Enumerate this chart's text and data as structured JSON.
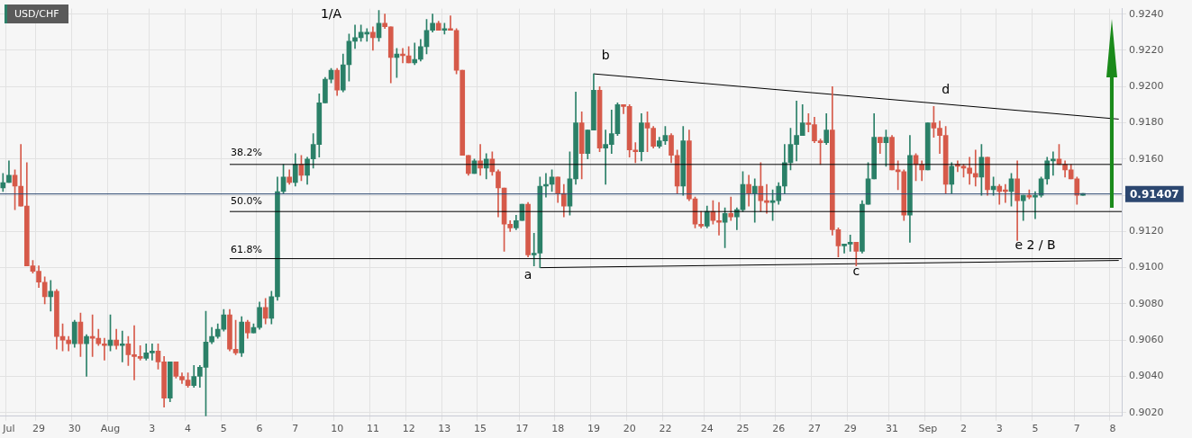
{
  "chart_data": {
    "type": "candlestick",
    "title": "USD/CHF",
    "categories": [
      null,
      "Jul",
      null,
      null,
      null,
      null,
      "29",
      null,
      null,
      null,
      null,
      null,
      "30",
      null,
      null,
      null,
      null,
      null,
      "Aug",
      null,
      null,
      null,
      null,
      null,
      null,
      "3",
      null,
      null,
      null,
      null,
      null,
      "4",
      null,
      null,
      null,
      null,
      null,
      "5",
      null,
      null,
      null,
      null,
      null,
      "6",
      null,
      null,
      null,
      null,
      null,
      "7",
      null,
      null,
      null,
      null,
      null,
      null,
      "10",
      null,
      null,
      null,
      null,
      null,
      "11",
      null,
      null,
      null,
      null,
      null,
      "12",
      null,
      null,
      null,
      null,
      null,
      "13",
      null,
      null,
      null,
      null,
      null,
      "15",
      null,
      null,
      null,
      null,
      null,
      null,
      "17",
      null,
      null,
      null,
      null,
      null,
      "18",
      null,
      null,
      null,
      null,
      null,
      "19",
      null,
      null,
      null,
      null,
      null,
      "20",
      null,
      null,
      null,
      null,
      null,
      "22",
      null,
      null,
      null,
      null,
      null,
      null,
      "24",
      null,
      null,
      null,
      null,
      null,
      "25",
      null,
      null,
      null,
      null,
      null,
      "26",
      null,
      null,
      null,
      null,
      null,
      "27",
      null,
      null,
      null,
      null,
      null,
      "29",
      null,
      null,
      null,
      null,
      null,
      null,
      "31",
      null,
      null,
      null,
      null,
      null,
      "Sep",
      null,
      null,
      null,
      null,
      null,
      "2",
      null,
      null,
      null,
      null,
      null,
      "3",
      null,
      null,
      null,
      null,
      null,
      "5",
      null,
      null,
      null,
      null,
      null,
      null,
      "7",
      null,
      null,
      null,
      null,
      null,
      "8",
      null
    ],
    "ohlc": [
      [
        0.9144,
        0.9152,
        0.9142,
        0.9147
      ],
      [
        0.9147,
        0.9159,
        0.9147,
        0.9151
      ],
      [
        0.9151,
        0.9154,
        0.9132,
        0.9145
      ],
      [
        0.9145,
        0.9168,
        0.9134,
        0.9134
      ],
      [
        0.9134,
        0.9158,
        0.9101,
        0.9101
      ],
      [
        0.9101,
        0.9104,
        0.9097,
        0.9098
      ],
      [
        0.9098,
        0.9101,
        0.9089,
        0.9092
      ],
      [
        0.9092,
        0.9095,
        0.908,
        0.9084
      ],
      [
        0.9084,
        0.9093,
        0.9076,
        0.9087
      ],
      [
        0.9087,
        0.9088,
        0.9055,
        0.9062
      ],
      [
        0.9062,
        0.9069,
        0.9054,
        0.906
      ],
      [
        0.906,
        0.9062,
        0.9054,
        0.9058
      ],
      [
        0.9058,
        0.9071,
        0.9056,
        0.907
      ],
      [
        0.907,
        0.9075,
        0.9051,
        0.9058
      ],
      [
        0.9058,
        0.9063,
        0.904,
        0.9062
      ],
      [
        0.9062,
        0.9074,
        0.9051,
        0.9061
      ],
      [
        0.9061,
        0.9066,
        0.9057,
        0.9058
      ],
      [
        0.9058,
        0.9061,
        0.9049,
        0.9057
      ],
      [
        0.9057,
        0.9074,
        0.9054,
        0.906
      ],
      [
        0.906,
        0.9066,
        0.9055,
        0.9057
      ],
      [
        0.9057,
        0.9065,
        0.9048,
        0.9058
      ],
      [
        0.9058,
        0.9062,
        0.9046,
        0.9052
      ],
      [
        0.9052,
        0.9068,
        0.9038,
        0.9051
      ],
      [
        0.9051,
        0.9057,
        0.9049,
        0.905
      ],
      [
        0.905,
        0.9058,
        0.9049,
        0.9053
      ],
      [
        0.9053,
        0.9058,
        0.9049,
        0.9054
      ],
      [
        0.9054,
        0.9058,
        0.9044,
        0.9048
      ],
      [
        0.9048,
        0.9051,
        0.9023,
        0.9028
      ],
      [
        0.9028,
        0.9048,
        0.9026,
        0.9048
      ],
      [
        0.9048,
        0.9048,
        0.9039,
        0.904
      ],
      [
        0.904,
        0.9042,
        0.9036,
        0.9038
      ],
      [
        0.9038,
        0.9042,
        0.9034,
        0.9035
      ],
      [
        0.9035,
        0.9046,
        0.9034,
        0.904
      ],
      [
        0.904,
        0.9046,
        0.9034,
        0.9045
      ],
      [
        0.9045,
        0.9076,
        0.9018,
        0.9059
      ],
      [
        0.9059,
        0.9067,
        0.9058,
        0.9062
      ],
      [
        0.9062,
        0.9069,
        0.9061,
        0.9066
      ],
      [
        0.9066,
        0.9077,
        0.9065,
        0.9074
      ],
      [
        0.9074,
        0.9077,
        0.9054,
        0.9055
      ],
      [
        0.9055,
        0.9071,
        0.9052,
        0.9053
      ],
      [
        0.9053,
        0.9073,
        0.9051,
        0.907
      ],
      [
        0.907,
        0.9071,
        0.9061,
        0.9064
      ],
      [
        0.9064,
        0.9069,
        0.9064,
        0.9067
      ],
      [
        0.9067,
        0.9081,
        0.9066,
        0.9078
      ],
      [
        0.9078,
        0.9083,
        0.9069,
        0.9072
      ],
      [
        0.9072,
        0.9087,
        0.9069,
        0.9084
      ],
      [
        0.9084,
        0.915,
        0.9082,
        0.9142
      ],
      [
        0.9142,
        0.9157,
        0.9141,
        0.915
      ],
      [
        0.915,
        0.9154,
        0.9146,
        0.9147
      ],
      [
        0.9147,
        0.9163,
        0.9145,
        0.9157
      ],
      [
        0.9157,
        0.9162,
        0.9148,
        0.9151
      ],
      [
        0.9151,
        0.9161,
        0.9146,
        0.916
      ],
      [
        0.916,
        0.9174,
        0.9155,
        0.9168
      ],
      [
        0.9168,
        0.9196,
        0.9161,
        0.9191
      ],
      [
        0.9191,
        0.9205,
        0.9191,
        0.9204
      ],
      [
        0.9204,
        0.921,
        0.9202,
        0.9209
      ],
      [
        0.9209,
        0.921,
        0.9195,
        0.9198
      ],
      [
        0.9198,
        0.9218,
        0.9197,
        0.9212
      ],
      [
        0.9212,
        0.9229,
        0.9203,
        0.9225
      ],
      [
        0.9225,
        0.9234,
        0.9221,
        0.9227
      ],
      [
        0.9227,
        0.9234,
        0.9225,
        0.923
      ],
      [
        0.9229,
        0.9232,
        0.9225,
        0.923
      ],
      [
        0.923,
        0.9233,
        0.922,
        0.9227
      ],
      [
        0.9227,
        0.9242,
        0.9225,
        0.9235
      ],
      [
        0.9235,
        0.924,
        0.9232,
        0.9233
      ],
      [
        0.9233,
        0.9233,
        0.9202,
        0.9216
      ],
      [
        0.9216,
        0.9221,
        0.9205,
        0.9218
      ],
      [
        0.9218,
        0.9221,
        0.9213,
        0.9217
      ],
      [
        0.9217,
        0.9222,
        0.9213,
        0.9213
      ],
      [
        0.9213,
        0.9224,
        0.9212,
        0.9215
      ],
      [
        0.9215,
        0.9226,
        0.9214,
        0.9222
      ],
      [
        0.9222,
        0.9237,
        0.9218,
        0.9231
      ],
      [
        0.9231,
        0.924,
        0.923,
        0.9235
      ],
      [
        0.9235,
        0.9236,
        0.9231,
        0.9231
      ],
      [
        0.9231,
        0.9235,
        0.9229,
        0.9232
      ],
      [
        0.9232,
        0.9239,
        0.9231,
        0.9231
      ],
      [
        0.9231,
        0.9232,
        0.9207,
        0.9209
      ],
      [
        0.9209,
        0.9209,
        0.9162,
        0.9162
      ],
      [
        0.9162,
        0.9162,
        0.9151,
        0.9152
      ],
      [
        0.9152,
        0.916,
        0.9152,
        0.9159
      ],
      [
        0.9159,
        0.9168,
        0.9151,
        0.9155
      ],
      [
        0.9155,
        0.9163,
        0.9149,
        0.916
      ],
      [
        0.916,
        0.9164,
        0.9151,
        0.9153
      ],
      [
        0.9153,
        0.9154,
        0.9128,
        0.9144
      ],
      [
        0.9144,
        0.9144,
        0.9109,
        0.9124
      ],
      [
        0.9124,
        0.9126,
        0.912,
        0.9122
      ],
      [
        0.9122,
        0.9129,
        0.9121,
        0.9126
      ],
      [
        0.9126,
        0.9135,
        0.9126,
        0.9135
      ],
      [
        0.9135,
        0.9136,
        0.9106,
        0.9107
      ],
      [
        0.9107,
        0.9119,
        0.9101,
        0.9108
      ],
      [
        0.9108,
        0.915,
        0.91,
        0.9145
      ],
      [
        0.9145,
        0.9152,
        0.9139,
        0.9146
      ],
      [
        0.9146,
        0.9154,
        0.9142,
        0.915
      ],
      [
        0.915,
        0.915,
        0.9136,
        0.9141
      ],
      [
        0.9141,
        0.9146,
        0.9128,
        0.9134
      ],
      [
        0.9134,
        0.9164,
        0.9129,
        0.9149
      ],
      [
        0.9149,
        0.9197,
        0.9146,
        0.918
      ],
      [
        0.918,
        0.9186,
        0.9149,
        0.9163
      ],
      [
        0.9163,
        0.9176,
        0.916,
        0.9176
      ],
      [
        0.9176,
        0.9207,
        0.9176,
        0.9198
      ],
      [
        0.9198,
        0.92,
        0.9164,
        0.9166
      ],
      [
        0.9166,
        0.9176,
        0.9146,
        0.9168
      ],
      [
        0.9168,
        0.9187,
        0.9163,
        0.9174
      ],
      [
        0.9174,
        0.9191,
        0.9173,
        0.919
      ],
      [
        0.919,
        0.919,
        0.9185,
        0.9189
      ],
      [
        0.9189,
        0.919,
        0.9161,
        0.9165
      ],
      [
        0.9165,
        0.9169,
        0.9158,
        0.9164
      ],
      [
        0.9164,
        0.9185,
        0.9159,
        0.918
      ],
      [
        0.918,
        0.9186,
        0.9164,
        0.9177
      ],
      [
        0.9177,
        0.9178,
        0.9166,
        0.9167
      ],
      [
        0.9167,
        0.9172,
        0.9166,
        0.917
      ],
      [
        0.917,
        0.9178,
        0.9168,
        0.9173
      ],
      [
        0.9173,
        0.9174,
        0.9158,
        0.9162
      ],
      [
        0.9162,
        0.9165,
        0.9141,
        0.9145
      ],
      [
        0.9145,
        0.9178,
        0.914,
        0.917
      ],
      [
        0.917,
        0.9176,
        0.9137,
        0.9138
      ],
      [
        0.9138,
        0.9139,
        0.9122,
        0.9124
      ],
      [
        0.9124,
        0.9131,
        0.9122,
        0.9123
      ],
      [
        0.9123,
        0.9134,
        0.9122,
        0.9131
      ],
      [
        0.9131,
        0.9137,
        0.9124,
        0.9126
      ],
      [
        0.9126,
        0.9136,
        0.9118,
        0.9125
      ],
      [
        0.9125,
        0.9133,
        0.9111,
        0.913
      ],
      [
        0.913,
        0.9139,
        0.9126,
        0.9128
      ],
      [
        0.9128,
        0.9133,
        0.9121,
        0.9132
      ],
      [
        0.9132,
        0.9153,
        0.9131,
        0.9146
      ],
      [
        0.9146,
        0.9151,
        0.9134,
        0.9141
      ],
      [
        0.9141,
        0.9149,
        0.9125,
        0.9145
      ],
      [
        0.9145,
        0.9158,
        0.9131,
        0.9137
      ],
      [
        0.9137,
        0.9146,
        0.913,
        0.9136
      ],
      [
        0.9136,
        0.9143,
        0.9126,
        0.9137
      ],
      [
        0.9137,
        0.9147,
        0.9135,
        0.9145
      ],
      [
        0.9145,
        0.9168,
        0.9141,
        0.9158
      ],
      [
        0.9158,
        0.9177,
        0.9154,
        0.9168
      ],
      [
        0.9168,
        0.9192,
        0.9159,
        0.9173
      ],
      [
        0.9173,
        0.919,
        0.9173,
        0.918
      ],
      [
        0.918,
        0.9185,
        0.9175,
        0.9179
      ],
      [
        0.9179,
        0.9183,
        0.9169,
        0.917
      ],
      [
        0.917,
        0.9171,
        0.9157,
        0.9169
      ],
      [
        0.9169,
        0.9185,
        0.9168,
        0.9176
      ],
      [
        0.9176,
        0.92,
        0.9118,
        0.9121
      ],
      [
        0.9121,
        0.9122,
        0.9106,
        0.9112
      ],
      [
        0.9112,
        0.9113,
        0.9108,
        0.9113
      ],
      [
        0.9113,
        0.9118,
        0.9109,
        0.9114
      ],
      [
        0.9114,
        0.9114,
        0.9101,
        0.9109
      ],
      [
        0.9109,
        0.9137,
        0.9108,
        0.9135
      ],
      [
        0.9135,
        0.9158,
        0.9135,
        0.9149
      ],
      [
        0.9149,
        0.9185,
        0.9149,
        0.9172
      ],
      [
        0.9172,
        0.9172,
        0.9163,
        0.9169
      ],
      [
        0.9169,
        0.9176,
        0.9156,
        0.9172
      ],
      [
        0.9172,
        0.9173,
        0.9154,
        0.9154
      ],
      [
        0.9154,
        0.9159,
        0.9143,
        0.9153
      ],
      [
        0.9153,
        0.9154,
        0.9126,
        0.9129
      ],
      [
        0.9129,
        0.9173,
        0.9114,
        0.9162
      ],
      [
        0.9162,
        0.9163,
        0.9148,
        0.9157
      ],
      [
        0.9157,
        0.9159,
        0.9148,
        0.9154
      ],
      [
        0.9154,
        0.918,
        0.9154,
        0.918
      ],
      [
        0.918,
        0.9189,
        0.9172,
        0.9177
      ],
      [
        0.9177,
        0.9181,
        0.9163,
        0.9173
      ],
      [
        0.9173,
        0.9178,
        0.9141,
        0.9146
      ],
      [
        0.9146,
        0.9158,
        0.9141,
        0.9156
      ],
      [
        0.9157,
        0.9159,
        0.9153,
        0.9156
      ],
      [
        0.9156,
        0.9157,
        0.915,
        0.9155
      ],
      [
        0.9155,
        0.9161,
        0.9146,
        0.9152
      ],
      [
        0.9152,
        0.9165,
        0.9145,
        0.915
      ],
      [
        0.915,
        0.9168,
        0.914,
        0.9161
      ],
      [
        0.9161,
        0.9161,
        0.914,
        0.9143
      ],
      [
        0.9143,
        0.915,
        0.914,
        0.9145
      ],
      [
        0.9145,
        0.9146,
        0.9135,
        0.9142
      ],
      [
        0.9143,
        0.9146,
        0.9136,
        0.9142
      ],
      [
        0.9142,
        0.9152,
        0.9134,
        0.9149
      ],
      [
        0.9149,
        0.9159,
        0.9115,
        0.9137
      ],
      [
        0.9137,
        0.914,
        0.9126,
        0.914
      ],
      [
        0.914,
        0.9143,
        0.9138,
        0.9139
      ],
      [
        0.9139,
        0.9142,
        0.9127,
        0.914
      ],
      [
        0.914,
        0.915,
        0.9139,
        0.9149
      ],
      [
        0.9149,
        0.9161,
        0.9146,
        0.9159
      ],
      [
        0.9159,
        0.9164,
        0.9151,
        0.916
      ],
      [
        0.916,
        0.9168,
        0.9157,
        0.9157
      ],
      [
        0.9157,
        0.9159,
        0.915,
        0.9154
      ],
      [
        0.9154,
        0.9157,
        0.9149,
        0.9149
      ],
      [
        0.9149,
        0.915,
        0.9135,
        0.914
      ],
      [
        0.914,
        0.9141,
        0.914,
        0.9141
      ],
      null,
      null,
      null,
      null,
      null,
      null
    ],
    "colors": [
      "#2b8068",
      "#2b8068",
      "#d65a4a",
      "#d65a4a",
      "#d65a4a",
      "#d65a4a",
      "#d65a4a",
      "#d65a4a",
      "#2b8068",
      "#d65a4a",
      "#d65a4a",
      "#d65a4a",
      "#2b8068",
      "#d65a4a",
      "#2b8068",
      "#d65a4a",
      "#d65a4a",
      "#d65a4a",
      "#2b8068",
      "#d65a4a",
      "#2b8068",
      "#d65a4a",
      "#d65a4a",
      "#d65a4a",
      "#2b8068",
      "#2b8068",
      "#d65a4a",
      "#d65a4a",
      "#2b8068",
      "#d65a4a",
      "#d65a4a",
      "#d65a4a",
      "#2b8068",
      "#2b8068",
      "#2b8068",
      "#2b8068",
      "#2b8068",
      "#2b8068",
      "#d65a4a",
      "#d65a4a",
      "#2b8068",
      "#d65a4a",
      "#2b8068",
      "#2b8068",
      "#d65a4a",
      "#2b8068",
      "#2b8068",
      "#2b8068",
      "#d65a4a",
      "#2b8068",
      "#d65a4a",
      "#2b8068",
      "#2b8068",
      "#2b8068",
      "#2b8068",
      "#2b8068",
      "#d65a4a",
      "#2b8068",
      "#2b8068",
      "#2b8068",
      "#2b8068",
      "#2b8068",
      "#d65a4a",
      "#2b8068",
      "#d65a4a",
      "#d65a4a",
      "#2b8068",
      "#d65a4a",
      "#d65a4a",
      "#2b8068",
      "#2b8068",
      "#2b8068",
      "#2b8068",
      "#d65a4a",
      "#2b8068",
      "#d65a4a",
      "#d65a4a",
      "#d65a4a",
      "#d65a4a",
      "#2b8068",
      "#d65a4a",
      "#2b8068",
      "#d65a4a",
      "#d65a4a",
      "#d65a4a",
      "#d65a4a",
      "#2b8068",
      "#2b8068",
      "#d65a4a",
      "#2b8068",
      "#2b8068",
      "#2b8068",
      "#2b8068",
      "#d65a4a",
      "#d65a4a",
      "#2b8068",
      "#2b8068",
      "#d65a4a",
      "#2b8068",
      "#2b8068",
      "#d65a4a",
      "#2b8068",
      "#2b8068",
      "#2b8068",
      "#d65a4a",
      "#d65a4a",
      "#d65a4a",
      "#2b8068",
      "#d65a4a",
      "#d65a4a",
      "#2b8068",
      "#2b8068",
      "#d65a4a",
      "#d65a4a",
      "#2b8068",
      "#d65a4a",
      "#d65a4a",
      "#d65a4a",
      "#2b8068",
      "#d65a4a",
      "#d65a4a",
      "#2b8068",
      "#d65a4a",
      "#2b8068",
      "#2b8068",
      "#d65a4a",
      "#2b8068",
      "#d65a4a",
      "#d65a4a",
      "#2b8068",
      "#2b8068",
      "#2b8068",
      "#2b8068",
      "#2b8068",
      "#2b8068",
      "#d65a4a",
      "#d65a4a",
      "#d65a4a",
      "#2b8068",
      "#d65a4a",
      "#d65a4a",
      "#2b8068",
      "#2b8068",
      "#d65a4a",
      "#2b8068",
      "#2b8068",
      "#2b8068",
      "#d65a4a",
      "#2b8068",
      "#d65a4a",
      "#d65a4a",
      "#d65a4a",
      "#2b8068",
      "#d65a4a",
      "#d65a4a",
      "#2b8068",
      "#d65a4a",
      "#d65a4a",
      "#d65a4a",
      "#2b8068",
      "#d65a4a",
      "#d65a4a",
      "#d65a4a",
      "#d65a4a",
      "#2b8068",
      "#d65a4a",
      "#2b8068",
      "#d65a4a",
      "#d65a4a",
      "#2b8068",
      "#d65a4a",
      "#2b8068",
      "#d65a4a",
      "#2b8068",
      "#2b8068",
      "#2b8068",
      "#2b8068",
      "#d65a4a",
      "#d65a4a",
      "#d65a4a",
      "#d65a4a",
      "#2b8068",
      null,
      null,
      null,
      null,
      null,
      null
    ],
    "series": [
      {
        "type": "line",
        "color": "#000000",
        "values": [
          null,
          null,
          null,
          null,
          null,
          null,
          null,
          null,
          null,
          null,
          null,
          null,
          null,
          null,
          null,
          null,
          null,
          null,
          null,
          null,
          null,
          null,
          null,
          null,
          null,
          null,
          null,
          null,
          null,
          null,
          null,
          null,
          null,
          null,
          null,
          null,
          null,
          null,
          null,
          null,
          null,
          null,
          null,
          null,
          null,
          null,
          null,
          null,
          null,
          null,
          null,
          null,
          null,
          null,
          null,
          null,
          null,
          null,
          null,
          null,
          null,
          null,
          null,
          null,
          null,
          null,
          null,
          null,
          null,
          null,
          null,
          null,
          null,
          null,
          null,
          null,
          null,
          null,
          null,
          null,
          null,
          null,
          null,
          null,
          null,
          null,
          null,
          null,
          null,
          null,
          null,
          null,
          null,
          null,
          null,
          null,
          null,
          null,
          null,
          0.9207,
          null,
          null,
          null,
          null,
          null,
          null,
          null,
          null,
          null,
          null,
          null,
          null,
          null,
          null,
          null,
          null,
          null,
          null,
          null,
          null,
          null,
          null,
          null,
          null,
          null,
          null,
          null,
          null,
          null,
          null,
          null,
          null,
          null,
          null,
          null,
          null,
          null,
          null,
          null,
          null,
          null,
          null,
          null,
          null,
          null,
          null,
          null,
          null,
          null,
          null,
          null,
          null,
          null,
          null,
          null,
          null,
          null,
          null,
          null,
          null,
          null,
          null,
          null,
          null,
          null,
          null,
          null,
          null,
          null,
          null,
          null,
          null,
          null,
          null,
          null,
          null,
          null,
          null,
          null,
          null,
          null,
          null,
          null,
          null,
          null,
          null,
          null,
          0.9182
        ]
      },
      {
        "type": "line",
        "color": "#000000",
        "values": [
          null,
          null,
          null,
          null,
          null,
          null,
          null,
          null,
          null,
          null,
          null,
          null,
          null,
          null,
          null,
          null,
          null,
          null,
          null,
          null,
          null,
          null,
          null,
          null,
          null,
          null,
          null,
          null,
          null,
          null,
          null,
          null,
          null,
          null,
          null,
          null,
          null,
          null,
          null,
          null,
          null,
          null,
          null,
          null,
          null,
          null,
          null,
          null,
          null,
          null,
          null,
          null,
          null,
          null,
          null,
          null,
          null,
          null,
          null,
          null,
          null,
          null,
          null,
          null,
          null,
          null,
          null,
          null,
          null,
          null,
          null,
          null,
          null,
          null,
          null,
          null,
          null,
          null,
          null,
          null,
          null,
          null,
          null,
          null,
          null,
          null,
          null,
          null,
          null,
          null,
          0.91,
          null,
          null,
          null,
          null,
          null,
          null,
          null,
          null,
          null,
          null,
          null,
          null,
          null,
          null,
          null,
          null,
          null,
          null,
          null,
          null,
          null,
          null,
          null,
          null,
          null,
          null,
          null,
          null,
          null,
          null,
          null,
          null,
          null,
          null,
          null,
          null,
          null,
          null,
          null,
          null,
          null,
          null,
          null,
          null,
          null,
          null,
          null,
          null,
          null,
          null,
          null,
          null,
          null,
          null,
          null,
          null,
          null,
          null,
          null,
          null,
          null,
          null,
          null,
          null,
          null,
          null,
          null,
          null,
          null,
          null,
          null,
          null,
          null,
          null,
          null,
          null,
          null,
          null,
          null,
          null,
          null,
          null,
          null,
          null,
          null,
          null,
          null,
          null,
          null,
          null,
          null,
          null,
          null,
          null,
          null,
          null,
          0.9104
        ]
      }
    ],
    "ref_lines": [
      {
        "axis": "y",
        "value": 0.9157,
        "color": "#000000"
      },
      {
        "axis": "y",
        "value": 0.9131,
        "color": "#000000"
      },
      {
        "axis": "y",
        "value": 0.9105,
        "color": "#000000"
      },
      {
        "axis": "y",
        "value": 0.91407,
        "label": "0.91407",
        "color": "#2c4770"
      }
    ],
    "annotations": [
      "1/A",
      "b",
      "a",
      "c",
      "d",
      "e 2 / B",
      "38.2%",
      "50.0%",
      "61.8%"
    ],
    "ylim": [
      0.9018,
      0.9243
    ],
    "yticks": [
      {
        "value": 0.902,
        "label": "0.9020"
      },
      {
        "value": 0.904,
        "label": "0.9040"
      },
      {
        "value": 0.906,
        "label": "0.9060"
      },
      {
        "value": 0.908,
        "label": "0.9080"
      },
      {
        "value": 0.91,
        "label": "0.9100"
      },
      {
        "value": 0.912,
        "label": "0.9120"
      },
      {
        "value": 0.914,
        "label": null
      },
      {
        "value": 0.916,
        "label": "0.9160"
      },
      {
        "value": 0.918,
        "label": "0.9180"
      },
      {
        "value": 0.92,
        "label": "0.9200"
      },
      {
        "value": 0.922,
        "label": "0.9220"
      },
      {
        "value": 0.924,
        "label": "0.9240"
      }
    ],
    "grid": true,
    "legend": false,
    "marker": "none"
  }
}
